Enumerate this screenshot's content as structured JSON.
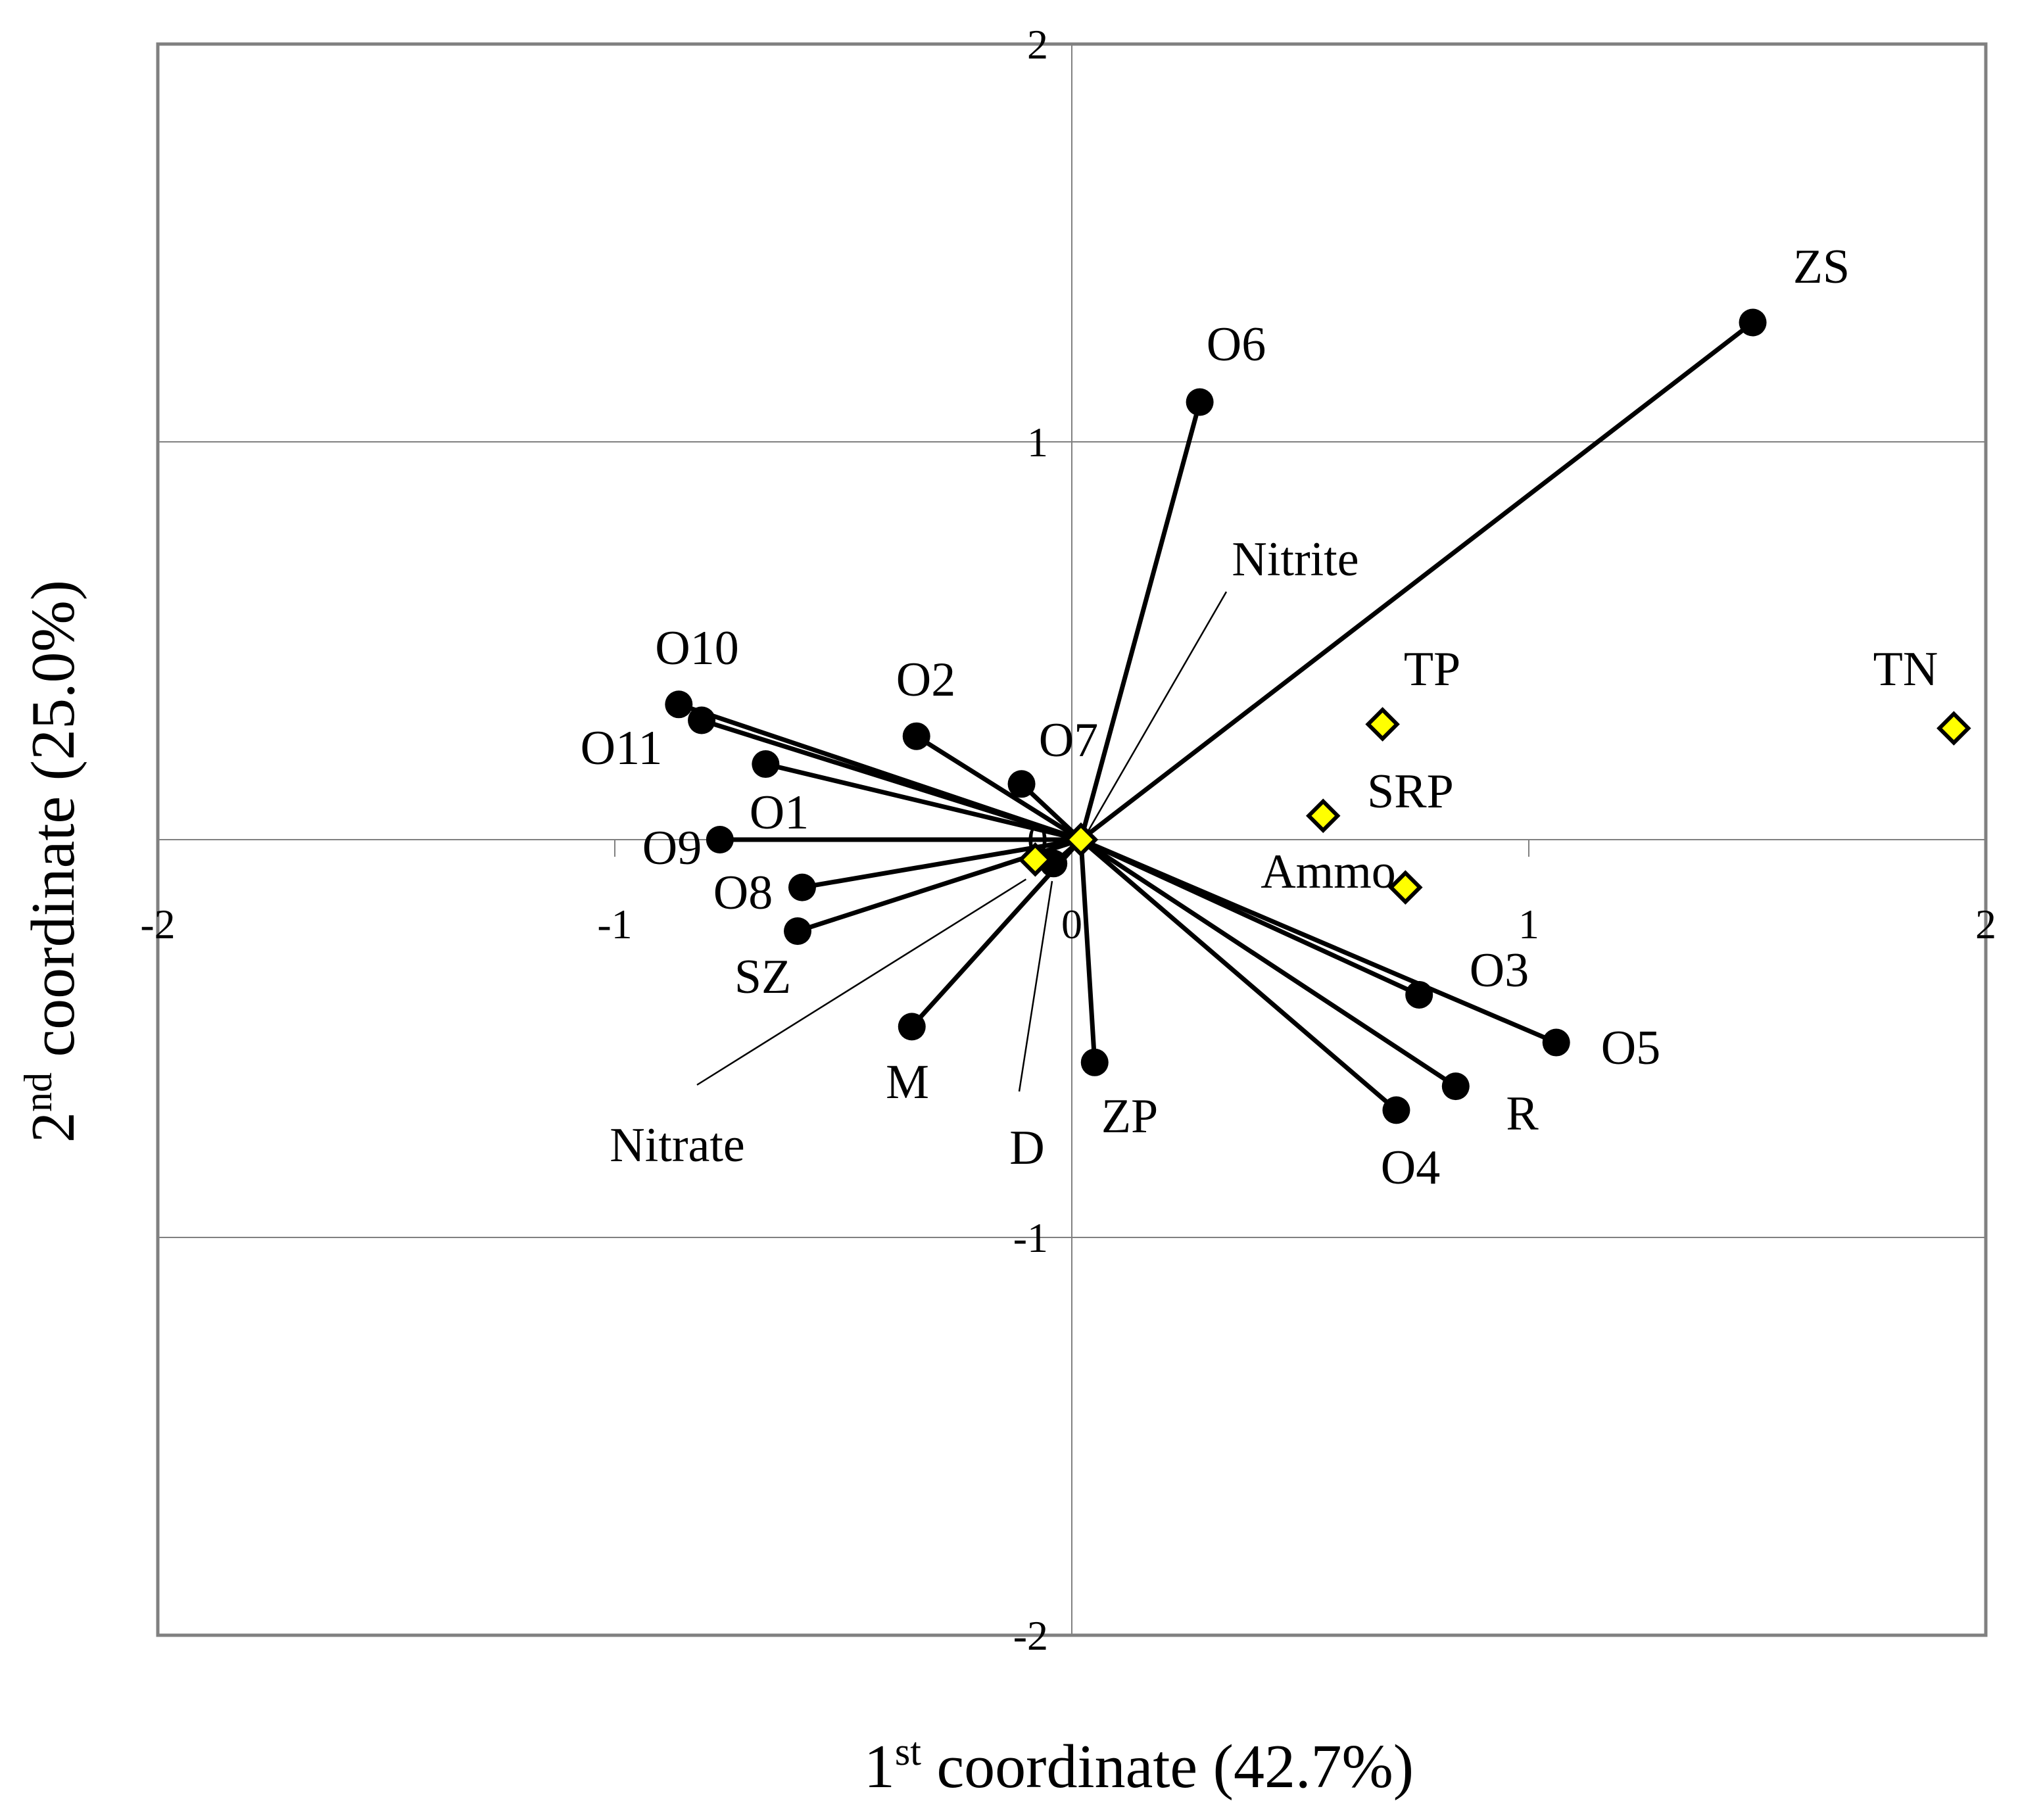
{
  "chart_data": {
    "type": "scatter",
    "xlabel": "1st coordinate (42.7%)",
    "ylabel": "2nd coordinate (25.0%)",
    "xlabel_parts": {
      "pre": "1",
      "sup": "st",
      "post": " coordinate (42.7%)"
    },
    "ylabel_parts": {
      "pre": "2",
      "sup": "nd",
      "post": " coordinate (25.0%)"
    },
    "xlim": [
      -2,
      2
    ],
    "ylim": [
      -2,
      2
    ],
    "xticks": [
      {
        "value": -2,
        "label": "-2"
      },
      {
        "value": -1,
        "label": "-1"
      },
      {
        "value": 0,
        "label": "0"
      },
      {
        "value": 1,
        "label": "1"
      },
      {
        "value": 2,
        "label": "2"
      }
    ],
    "yticks": [
      {
        "value": 2,
        "label": "2"
      },
      {
        "value": 1,
        "label": "1"
      },
      {
        "value": 0,
        "label": "0"
      },
      {
        "value": -1,
        "label": "-1"
      },
      {
        "value": -2,
        "label": "-2"
      }
    ],
    "grid": true,
    "origin": [
      0.02,
      0.0
    ],
    "sites": [
      {
        "name": "ZS",
        "x": 1.49,
        "y": 1.3
      },
      {
        "name": "O6",
        "x": 0.28,
        "y": 1.1
      },
      {
        "name": "O10",
        "x": -0.86,
        "y": 0.34
      },
      {
        "name": "O11",
        "x": -0.81,
        "y": 0.3
      },
      {
        "name": "O1",
        "x": -0.67,
        "y": 0.19
      },
      {
        "name": "O2",
        "x": -0.34,
        "y": 0.26
      },
      {
        "name": "O7",
        "x": -0.11,
        "y": 0.14
      },
      {
        "name": "O9",
        "x": -0.77,
        "y": 0.0
      },
      {
        "name": "O8",
        "x": -0.59,
        "y": -0.12
      },
      {
        "name": "SZ",
        "x": -0.6,
        "y": -0.23
      },
      {
        "name": "M",
        "x": -0.35,
        "y": -0.47
      },
      {
        "name": "D",
        "x": -0.04,
        "y": -0.06
      },
      {
        "name": "ZP",
        "x": 0.05,
        "y": -0.56
      },
      {
        "name": "O3",
        "x": 0.76,
        "y": -0.39
      },
      {
        "name": "O5",
        "x": 1.06,
        "y": -0.51
      },
      {
        "name": "R",
        "x": 0.84,
        "y": -0.62
      },
      {
        "name": "O4",
        "x": 0.71,
        "y": -0.68
      }
    ],
    "variables": [
      {
        "name": "TN",
        "x": 1.93,
        "y": 0.28
      },
      {
        "name": "TP",
        "x": 0.68,
        "y": 0.29
      },
      {
        "name": "SRP",
        "x": 0.55,
        "y": 0.06
      },
      {
        "name": "Ammo",
        "x": 0.73,
        "y": -0.12
      },
      {
        "name": "Nitrite",
        "x": 0.02,
        "y": 0.0
      },
      {
        "name": "Nitrate",
        "x": -0.08,
        "y": -0.05
      }
    ],
    "colors": {
      "site_marker": "#000000",
      "variable_fill": "#ffff00",
      "variable_stroke": "#000000",
      "grid": "#808080",
      "frame": "#808080"
    }
  }
}
